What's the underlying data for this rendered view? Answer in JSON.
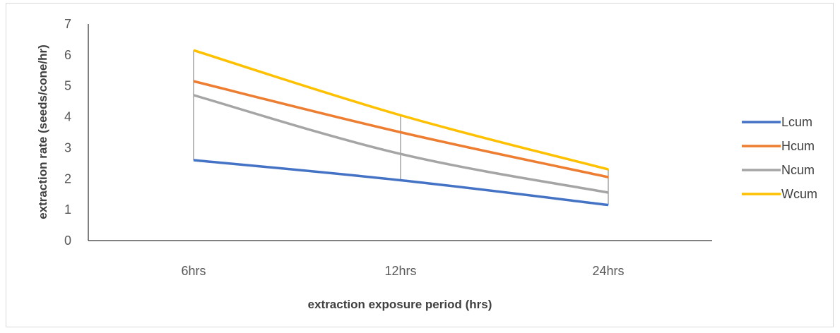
{
  "chart_data": {
    "type": "line",
    "categories": [
      "6hrs",
      "12hrs",
      "24hrs"
    ],
    "series": [
      {
        "name": "Lcum",
        "values": [
          2.6,
          1.95,
          1.15
        ],
        "color": "#4472c4"
      },
      {
        "name": "Hcum",
        "values": [
          5.15,
          3.5,
          2.05
        ],
        "color": "#ed7d31"
      },
      {
        "name": "Ncum",
        "values": [
          4.7,
          2.8,
          1.55
        ],
        "color": "#a5a5a5"
      },
      {
        "name": "Wcum",
        "values": [
          6.15,
          4.05,
          2.3
        ],
        "color": "#ffc000"
      }
    ],
    "high_low_lines": true,
    "xlabel": "extraction exposure period (hrs)",
    "ylabel": "extraction rate (seeds/cone/hr)",
    "ylim": [
      0,
      7
    ],
    "yticks": [
      "0",
      "1",
      "2",
      "3",
      "4",
      "5",
      "6",
      "7"
    ],
    "grid": false,
    "legend": "right"
  }
}
